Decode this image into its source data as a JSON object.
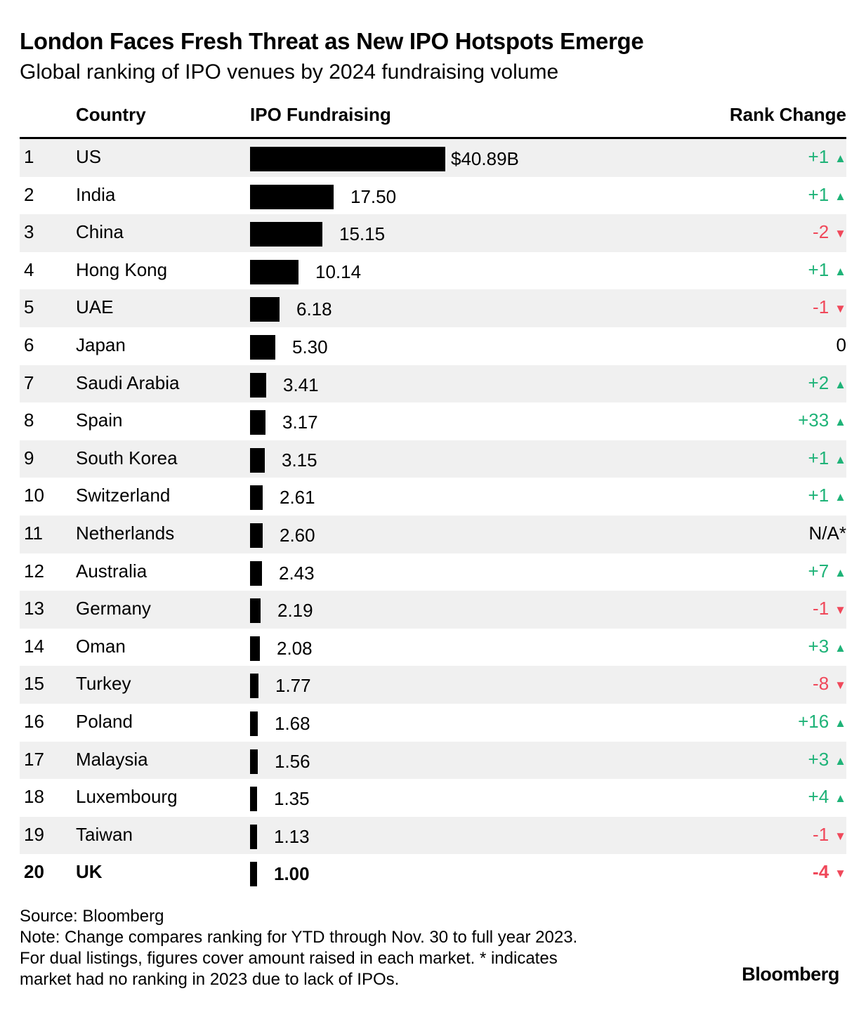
{
  "title": "London Faces Fresh Threat as New IPO Hotspots Emerge",
  "subtitle": "Global ranking of IPO venues by 2024 fundraising volume",
  "headers": {
    "country": "Country",
    "ipo": "IPO Fundraising",
    "rank_change": "Rank Change"
  },
  "colors": {
    "up": "#1fb378",
    "down": "#f0485a",
    "bar": "#000000",
    "shade": "#f0f0f0"
  },
  "chart_data": {
    "type": "bar",
    "orientation": "horizontal",
    "title": "London Faces Fresh Threat as New IPO Hotspots Emerge",
    "subtitle": "Global ranking of IPO venues by 2024 fundraising volume",
    "unit": "$B",
    "rows": [
      {
        "rank": "1",
        "country": "US",
        "value": 40.89,
        "label": "$40.89B",
        "change": "+1",
        "direction": "up"
      },
      {
        "rank": "2",
        "country": "India",
        "value": 17.5,
        "label": "17.50",
        "change": "+1",
        "direction": "up"
      },
      {
        "rank": "3",
        "country": "China",
        "value": 15.15,
        "label": "15.15",
        "change": "-2",
        "direction": "down"
      },
      {
        "rank": "4",
        "country": "Hong Kong",
        "value": 10.14,
        "label": "10.14",
        "change": "+1",
        "direction": "up"
      },
      {
        "rank": "5",
        "country": "UAE",
        "value": 6.18,
        "label": "6.18",
        "change": "-1",
        "direction": "down"
      },
      {
        "rank": "6",
        "country": "Japan",
        "value": 5.3,
        "label": "5.30",
        "change": "0",
        "direction": "none"
      },
      {
        "rank": "7",
        "country": "Saudi Arabia",
        "value": 3.41,
        "label": "3.41",
        "change": "+2",
        "direction": "up"
      },
      {
        "rank": "8",
        "country": "Spain",
        "value": 3.17,
        "label": "3.17",
        "change": "+33",
        "direction": "up"
      },
      {
        "rank": "9",
        "country": "South Korea",
        "value": 3.15,
        "label": "3.15",
        "change": "+1",
        "direction": "up"
      },
      {
        "rank": "10",
        "country": "Switzerland",
        "value": 2.61,
        "label": "2.61",
        "change": "+1",
        "direction": "up"
      },
      {
        "rank": "11",
        "country": "Netherlands",
        "value": 2.6,
        "label": "2.60",
        "change": "N/A*",
        "direction": "none"
      },
      {
        "rank": "12",
        "country": "Australia",
        "value": 2.43,
        "label": "2.43",
        "change": "+7",
        "direction": "up"
      },
      {
        "rank": "13",
        "country": "Germany",
        "value": 2.19,
        "label": "2.19",
        "change": "-1",
        "direction": "down"
      },
      {
        "rank": "14",
        "country": "Oman",
        "value": 2.08,
        "label": "2.08",
        "change": "+3",
        "direction": "up"
      },
      {
        "rank": "15",
        "country": "Turkey",
        "value": 1.77,
        "label": "1.77",
        "change": "-8",
        "direction": "down"
      },
      {
        "rank": "16",
        "country": "Poland",
        "value": 1.68,
        "label": "1.68",
        "change": "+16",
        "direction": "up"
      },
      {
        "rank": "17",
        "country": "Malaysia",
        "value": 1.56,
        "label": "1.56",
        "change": "+3",
        "direction": "up"
      },
      {
        "rank": "18",
        "country": "Luxembourg",
        "value": 1.35,
        "label": "1.35",
        "change": "+4",
        "direction": "up"
      },
      {
        "rank": "19",
        "country": "Taiwan",
        "value": 1.13,
        "label": "1.13",
        "change": "-1",
        "direction": "down"
      },
      {
        "rank": "20",
        "country": "UK",
        "value": 1.0,
        "label": "1.00",
        "change": "-4",
        "direction": "down",
        "highlight": true
      }
    ]
  },
  "footer": {
    "source": "Source: Bloomberg",
    "note_lines": [
      "Note: Change compares ranking for YTD through Nov. 30 to full year 2023.",
      "For dual listings, figures cover amount raised in each market. * indicates",
      "market had no ranking in 2023 due to lack of IPOs."
    ],
    "brand": "Bloomberg"
  }
}
